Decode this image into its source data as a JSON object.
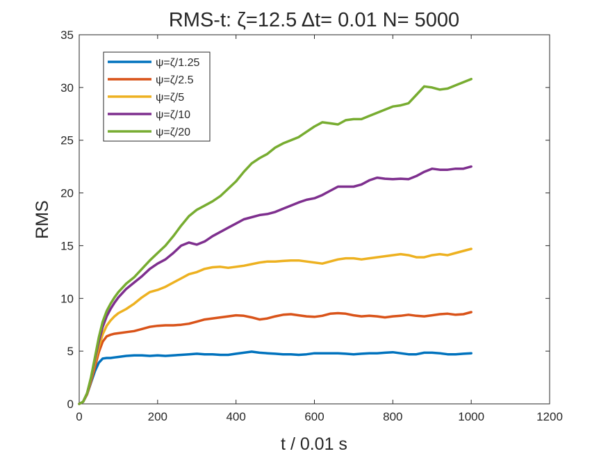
{
  "chart_data": {
    "type": "line",
    "title": "RMS-t:  ζ=12.5 Δt= 0.01 N= 5000",
    "xlabel": "t / 0.01 s",
    "ylabel": "RMS",
    "xlim": [
      0,
      1200
    ],
    "ylim": [
      0,
      35
    ],
    "xticks": [
      0,
      200,
      400,
      600,
      800,
      1000,
      1200
    ],
    "yticks": [
      0,
      5,
      10,
      15,
      20,
      25,
      30,
      35
    ],
    "xtick_labels": [
      "0",
      "200",
      "400",
      "600",
      "800",
      "1000",
      "1200"
    ],
    "ytick_labels": [
      "0",
      "5",
      "10",
      "15",
      "20",
      "25",
      "30",
      "35"
    ],
    "grid": false,
    "legend_position": "top-left",
    "x": [
      0,
      10,
      20,
      30,
      40,
      50,
      60,
      70,
      80,
      90,
      100,
      120,
      140,
      160,
      180,
      200,
      220,
      240,
      260,
      280,
      300,
      320,
      340,
      360,
      380,
      400,
      420,
      440,
      460,
      480,
      500,
      520,
      540,
      560,
      580,
      600,
      620,
      640,
      660,
      680,
      700,
      720,
      740,
      760,
      780,
      800,
      820,
      840,
      860,
      880,
      900,
      920,
      940,
      960,
      980,
      1000
    ],
    "series": [
      {
        "name": "ψ=ζ/1.25",
        "color": "#0072BD",
        "values": [
          0,
          0.2,
          0.9,
          2.0,
          3.1,
          3.9,
          4.3,
          4.35,
          4.35,
          4.4,
          4.45,
          4.55,
          4.6,
          4.6,
          4.55,
          4.6,
          4.55,
          4.6,
          4.65,
          4.7,
          4.75,
          4.7,
          4.7,
          4.65,
          4.65,
          4.75,
          4.85,
          4.95,
          4.85,
          4.8,
          4.75,
          4.7,
          4.7,
          4.65,
          4.7,
          4.8,
          4.8,
          4.8,
          4.8,
          4.75,
          4.7,
          4.75,
          4.8,
          4.8,
          4.85,
          4.9,
          4.8,
          4.7,
          4.7,
          4.85,
          4.85,
          4.8,
          4.7,
          4.7,
          4.75,
          4.8
        ]
      },
      {
        "name": "ψ=ζ/2.5",
        "color": "#D95319",
        "values": [
          0,
          0.2,
          0.9,
          2.1,
          3.5,
          4.9,
          5.9,
          6.4,
          6.55,
          6.65,
          6.7,
          6.8,
          6.9,
          7.1,
          7.3,
          7.4,
          7.45,
          7.45,
          7.5,
          7.6,
          7.8,
          8.0,
          8.1,
          8.2,
          8.3,
          8.4,
          8.35,
          8.2,
          8.0,
          8.1,
          8.3,
          8.45,
          8.5,
          8.4,
          8.3,
          8.25,
          8.35,
          8.55,
          8.6,
          8.55,
          8.4,
          8.3,
          8.35,
          8.3,
          8.2,
          8.3,
          8.35,
          8.45,
          8.35,
          8.3,
          8.4,
          8.5,
          8.55,
          8.45,
          8.5,
          8.7
        ]
      },
      {
        "name": "ψ=ζ/5",
        "color": "#EDB120",
        "values": [
          0,
          0.2,
          1.0,
          2.3,
          3.9,
          5.4,
          6.6,
          7.4,
          7.9,
          8.3,
          8.6,
          9.0,
          9.5,
          10.1,
          10.6,
          10.8,
          11.1,
          11.5,
          11.9,
          12.3,
          12.5,
          12.8,
          12.95,
          13.0,
          12.9,
          13.0,
          13.1,
          13.25,
          13.4,
          13.5,
          13.5,
          13.55,
          13.6,
          13.6,
          13.5,
          13.4,
          13.3,
          13.5,
          13.7,
          13.8,
          13.8,
          13.7,
          13.8,
          13.9,
          14.0,
          14.1,
          14.2,
          14.1,
          13.9,
          13.9,
          14.1,
          14.2,
          14.1,
          14.3,
          14.5,
          14.7
        ]
      },
      {
        "name": "ψ=ζ/10",
        "color": "#7E2F8E",
        "values": [
          0,
          0.2,
          1.0,
          2.4,
          4.2,
          5.9,
          7.3,
          8.3,
          9.0,
          9.6,
          10.1,
          10.9,
          11.5,
          12.1,
          12.8,
          13.3,
          13.7,
          14.3,
          15.0,
          15.3,
          15.1,
          15.4,
          15.9,
          16.3,
          16.7,
          17.1,
          17.5,
          17.7,
          17.9,
          18.0,
          18.2,
          18.5,
          18.8,
          19.1,
          19.35,
          19.5,
          19.8,
          20.2,
          20.6,
          20.6,
          20.6,
          20.8,
          21.2,
          21.45,
          21.35,
          21.3,
          21.35,
          21.3,
          21.6,
          22.0,
          22.3,
          22.2,
          22.2,
          22.3,
          22.3,
          22.5
        ]
      },
      {
        "name": "ψ=ζ/20",
        "color": "#77AC30",
        "values": [
          0,
          0.2,
          1.0,
          2.5,
          4.4,
          6.3,
          7.8,
          8.8,
          9.5,
          10.1,
          10.6,
          11.4,
          12.0,
          12.8,
          13.6,
          14.3,
          15.0,
          15.9,
          16.9,
          17.8,
          18.4,
          18.8,
          19.2,
          19.7,
          20.4,
          21.1,
          22.0,
          22.8,
          23.3,
          23.7,
          24.3,
          24.7,
          25.0,
          25.3,
          25.8,
          26.3,
          26.7,
          26.6,
          26.5,
          26.9,
          27.0,
          27.0,
          27.3,
          27.6,
          27.9,
          28.2,
          28.3,
          28.5,
          29.3,
          30.1,
          30.0,
          29.8,
          29.9,
          30.2,
          30.5,
          30.8
        ]
      }
    ]
  }
}
